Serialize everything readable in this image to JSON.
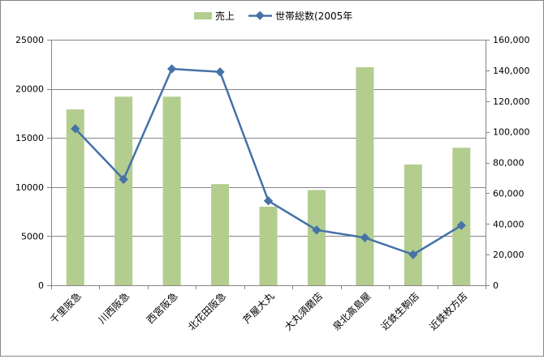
{
  "chart_data": {
    "type": "bar+line",
    "categories": [
      "千里阪急",
      "川西阪急",
      "西宮阪急",
      "北花田阪急",
      "芦屋大丸",
      "大丸須磨店",
      "泉北高島屋",
      "近鉄生駒店",
      "近鉄枚方店"
    ],
    "series": [
      {
        "name": "売上",
        "type": "bar",
        "axis": "left",
        "color": "#b3cd8f",
        "values": [
          17900,
          19200,
          19200,
          10300,
          8000,
          9700,
          22200,
          12300,
          14000
        ]
      },
      {
        "name": "世帯総数(2005年",
        "type": "line",
        "axis": "right",
        "color": "#4572a7",
        "values": [
          102000,
          69000,
          141000,
          139000,
          55000,
          36000,
          31000,
          20000,
          39000
        ]
      }
    ],
    "y_left": {
      "min": 0,
      "max": 25000,
      "ticks": [
        "0",
        "5000",
        "10000",
        "15000",
        "20000",
        "25000"
      ]
    },
    "y_right": {
      "min": 0,
      "max": 160000,
      "ticks": [
        "0",
        "20,000",
        "40,000",
        "60,000",
        "80,000",
        "100,000",
        "120,000",
        "140,000",
        "160,000"
      ]
    },
    "grid": true,
    "legend": "top-center"
  }
}
